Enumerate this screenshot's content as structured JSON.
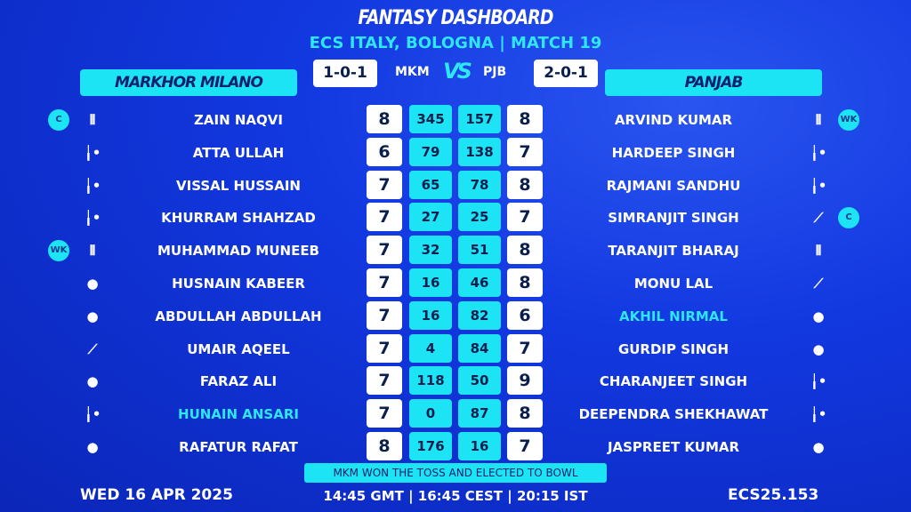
{
  "header": {
    "title": "FANTASY DASHBOARD",
    "subtitle": "ECS ITALY, BOLOGNA | MATCH 19"
  },
  "home": {
    "name": "MARKHOR MILANO",
    "abbr": "MKM",
    "record": "1-0-1"
  },
  "away": {
    "name": "PANJAB",
    "abbr": "PJB",
    "record": "2-0-1"
  },
  "vs": "VS",
  "rows": [
    {
      "l": {
        "name": "ZAIN NAQVI",
        "badge": "C",
        "icon": "stumps-icon",
        "r1": "8",
        "p": "345"
      },
      "r": {
        "name": "ARVIND KUMAR",
        "badge": "WK",
        "icon": "stumps-icon",
        "r1": "8",
        "p": "157"
      }
    },
    {
      "l": {
        "name": "ATTA ULLAH",
        "badge": "",
        "icon": "bat-ball-icon",
        "r1": "6",
        "p": "79"
      },
      "r": {
        "name": "HARDEEP SINGH",
        "badge": "",
        "icon": "bat-ball-icon",
        "r1": "7",
        "p": "138"
      }
    },
    {
      "l": {
        "name": "VISSAL HUSSAIN",
        "badge": "",
        "icon": "bat-ball-icon",
        "r1": "7",
        "p": "65"
      },
      "r": {
        "name": "RAJMANI SANDHU",
        "badge": "",
        "icon": "bat-ball-icon",
        "r1": "8",
        "p": "78"
      }
    },
    {
      "l": {
        "name": "KHURRAM SHAHZAD",
        "badge": "",
        "icon": "bat-ball-icon",
        "r1": "7",
        "p": "27"
      },
      "r": {
        "name": "SIMRANJIT SINGH",
        "badge": "C",
        "icon": "bat-icon",
        "r1": "7",
        "p": "25"
      }
    },
    {
      "l": {
        "name": "MUHAMMAD MUNEEB",
        "badge": "WK",
        "icon": "stumps-icon",
        "r1": "7",
        "p": "32"
      },
      "r": {
        "name": "TARANJIT BHARAJ",
        "badge": "",
        "icon": "stumps-icon",
        "r1": "8",
        "p": "51"
      }
    },
    {
      "l": {
        "name": "HUSNAIN KABEER",
        "badge": "",
        "icon": "ball-icon",
        "r1": "7",
        "p": "16"
      },
      "r": {
        "name": "MONU LAL",
        "badge": "",
        "icon": "bat-icon",
        "r1": "8",
        "p": "46"
      }
    },
    {
      "l": {
        "name": "ABDULLAH ABDULLAH",
        "badge": "",
        "icon": "ball-icon",
        "r1": "7",
        "p": "16"
      },
      "r": {
        "name": "AKHIL NIRMAL",
        "badge": "",
        "icon": "ball-icon",
        "r1": "6",
        "p": "82",
        "highlight": true
      }
    },
    {
      "l": {
        "name": "UMAIR AQEEL",
        "badge": "",
        "icon": "bat-icon",
        "r1": "7",
        "p": "4"
      },
      "r": {
        "name": "GURDIP SINGH",
        "badge": "",
        "icon": "ball-icon",
        "r1": "7",
        "p": "84"
      }
    },
    {
      "l": {
        "name": "FARAZ ALI",
        "badge": "",
        "icon": "ball-icon",
        "r1": "7",
        "p": "118"
      },
      "r": {
        "name": "CHARANJEET SINGH",
        "badge": "",
        "icon": "bat-ball-icon",
        "r1": "9",
        "p": "50"
      }
    },
    {
      "l": {
        "name": "HUNAIN ANSARI",
        "badge": "",
        "icon": "bat-ball-icon",
        "r1": "7",
        "p": "0",
        "highlight": true
      },
      "r": {
        "name": "DEEPENDRA SHEKHAWAT",
        "badge": "",
        "icon": "bat-ball-icon",
        "r1": "8",
        "p": "87"
      }
    },
    {
      "l": {
        "name": "RAFATUR RAFAT",
        "badge": "",
        "icon": "ball-icon",
        "r1": "8",
        "p": "176"
      },
      "r": {
        "name": "JASPREET KUMAR",
        "badge": "",
        "icon": "ball-icon",
        "r1": "7",
        "p": "16"
      }
    }
  ],
  "toss": "MKM WON THE TOSS AND ELECTED TO BOWL",
  "footer": {
    "date": "WED 16 APR 2025",
    "times": "14:45 GMT | 16:45 CEST | 20:15 IST",
    "code": "ECS25.153"
  },
  "colors": {
    "accent": "#1de4f5",
    "background": "#1238e0",
    "highlight": "#2ee6f5"
  }
}
